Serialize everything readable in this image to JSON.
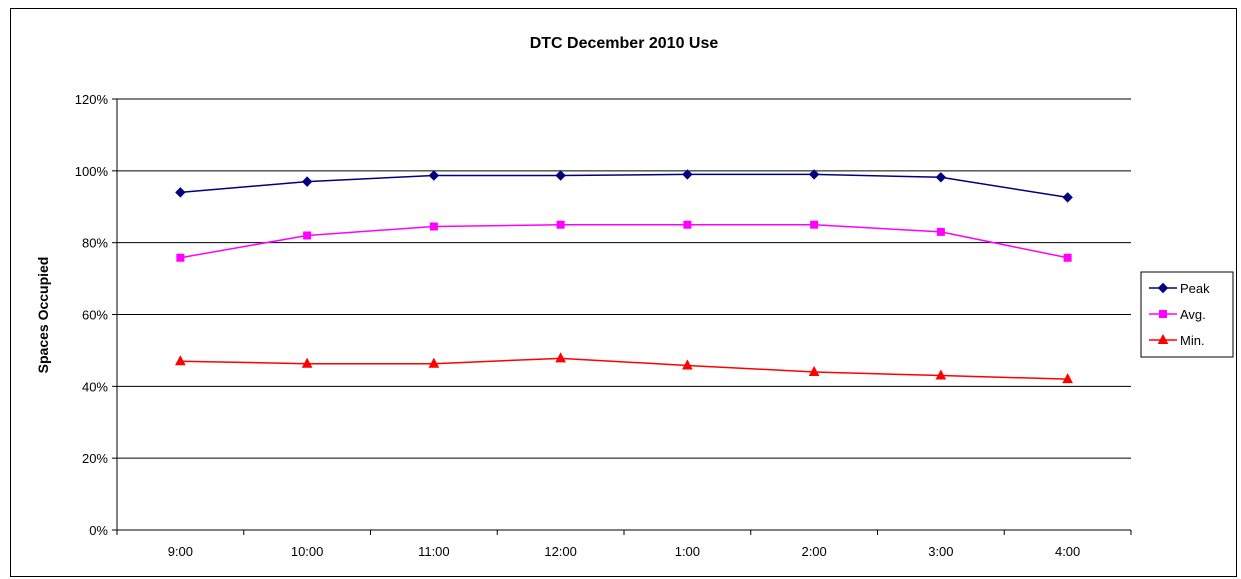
{
  "chart_data": {
    "type": "line",
    "title": "DTC December 2010 Use",
    "xlabel": "",
    "ylabel": "Spaces Occupied",
    "categories": [
      "9:00",
      "10:00",
      "11:00",
      "12:00",
      "1:00",
      "2:00",
      "3:00",
      "4:00"
    ],
    "ylim": [
      0,
      1.2
    ],
    "yticks": [
      "0%",
      "20%",
      "40%",
      "60%",
      "80%",
      "100%",
      "120%"
    ],
    "grid": true,
    "legend_position": "right",
    "series": [
      {
        "name": "Peak",
        "color": "#000080",
        "marker": "diamond",
        "values": [
          0.94,
          0.97,
          0.987,
          0.987,
          0.99,
          0.99,
          0.982,
          0.926
        ]
      },
      {
        "name": "Avg.",
        "color": "#FF00FF",
        "marker": "square",
        "values": [
          0.758,
          0.82,
          0.845,
          0.85,
          0.85,
          0.85,
          0.83,
          0.758
        ]
      },
      {
        "name": "Min.",
        "color": "#FF0000",
        "marker": "triangle",
        "values": [
          0.47,
          0.463,
          0.463,
          0.478,
          0.458,
          0.44,
          0.43,
          0.42
        ]
      }
    ]
  }
}
